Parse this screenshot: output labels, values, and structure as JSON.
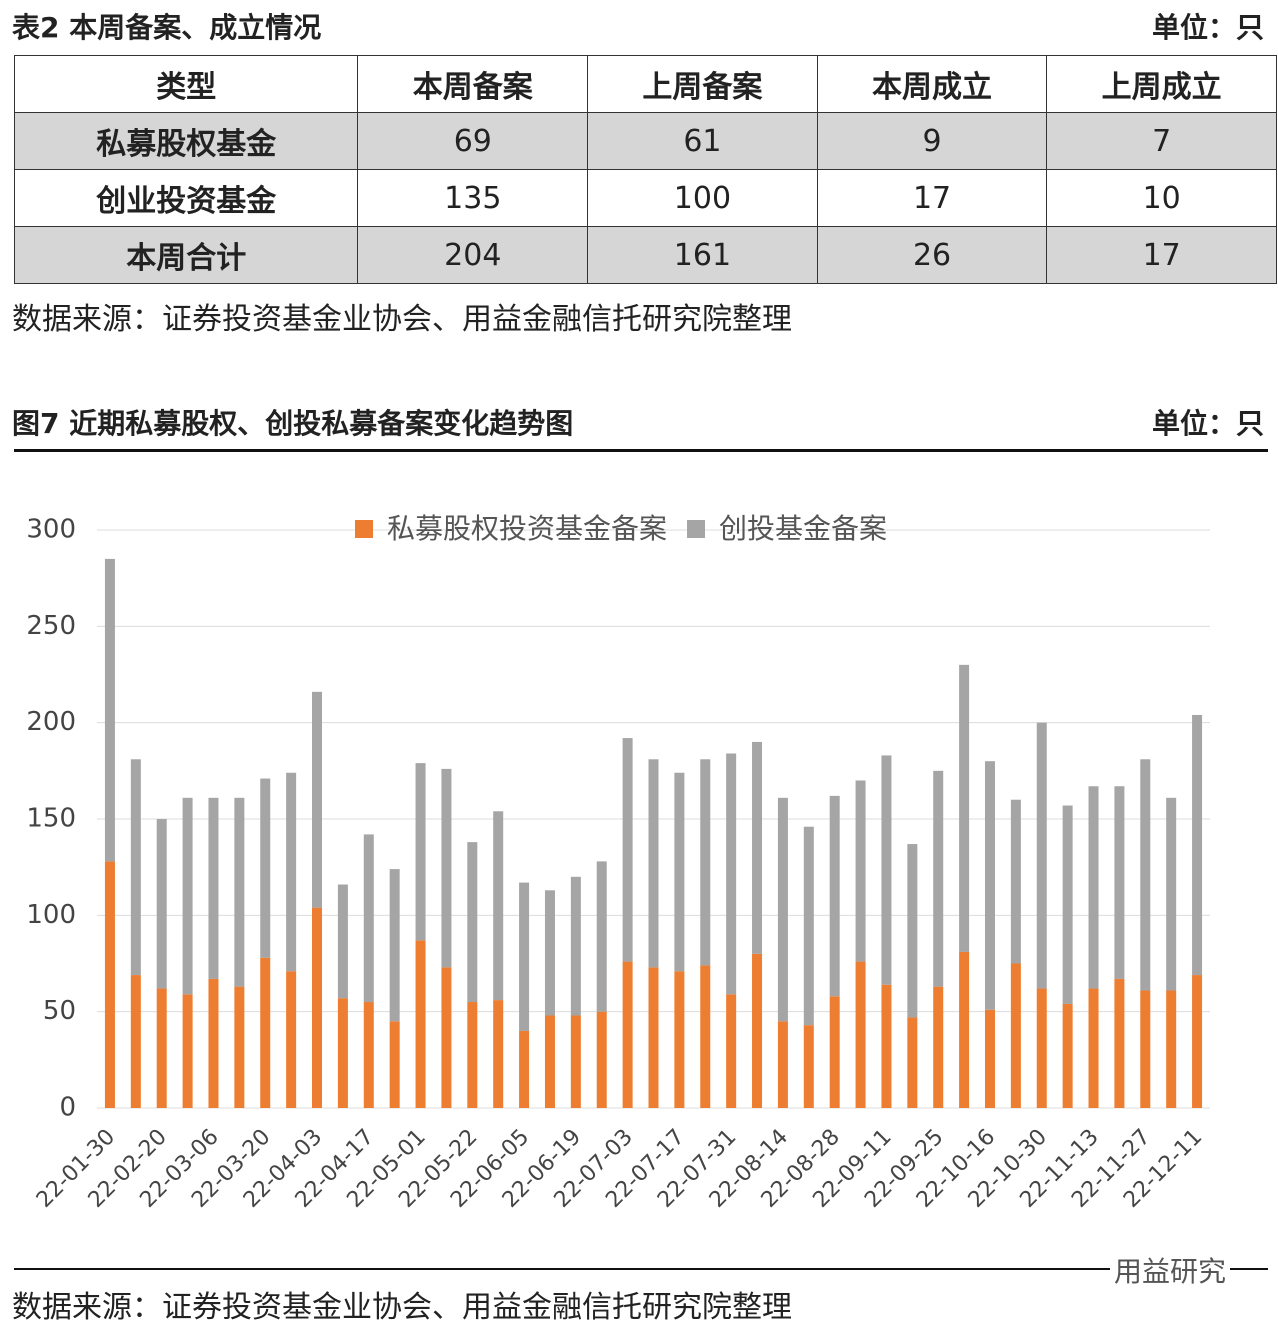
{
  "table_title": "表2  本周备案、成立情况",
  "table_unit": "单位：只",
  "table": {
    "header": [
      "类型",
      "本周备案",
      "上周备案",
      "本周成立",
      "上周成立"
    ],
    "rows": [
      [
        "私募股权基金",
        "69",
        "61",
        "9",
        "7"
      ],
      [
        "创业投资基金",
        "135",
        "100",
        "17",
        "10"
      ],
      [
        "本周合计",
        "204",
        "161",
        "26",
        "17"
      ]
    ]
  },
  "table_source": "数据来源：证券投资基金业协会、用益金融信托研究院整理",
  "figure_title": "图7  近期私募股权、创投私募备案变化趋势图",
  "figure_unit": "单位：只",
  "chart_data": {
    "type": "stacked-bar",
    "categories": [
      "22-01-30",
      null,
      "22-02-20",
      null,
      "22-03-06",
      null,
      "22-03-20",
      null,
      "22-04-03",
      null,
      "22-04-17",
      null,
      "22-05-01",
      null,
      "22-05-22",
      null,
      "22-06-05",
      null,
      "22-06-19",
      null,
      "22-07-03",
      null,
      "22-07-17",
      null,
      "22-07-31",
      null,
      "22-08-14",
      null,
      "22-08-28",
      null,
      "22-09-11",
      null,
      "22-09-25",
      null,
      "22-10-16",
      null,
      "22-10-30",
      null,
      "22-11-13",
      null,
      "22-11-27",
      null,
      "22-12-11"
    ],
    "series": [
      {
        "name": "私募股权投资基金备案",
        "color": "#ed7d31",
        "values": [
          128,
          69,
          62,
          59,
          67,
          63,
          78,
          71,
          104,
          57,
          55,
          45,
          87,
          73,
          55,
          56,
          40,
          48,
          48,
          50,
          76,
          73,
          71,
          74,
          59,
          80,
          45,
          43,
          58,
          76,
          64,
          47,
          63,
          81,
          51,
          75,
          62,
          54,
          62,
          67,
          61,
          61,
          69
        ]
      },
      {
        "name": "创投基金备案",
        "color": "#a5a5a5",
        "values": [
          157,
          112,
          88,
          102,
          94,
          98,
          93,
          103,
          112,
          59,
          87,
          79,
          92,
          103,
          83,
          98,
          77,
          65,
          72,
          78,
          116,
          108,
          103,
          107,
          125,
          110,
          116,
          103,
          104,
          94,
          119,
          90,
          112,
          149,
          129,
          85,
          138,
          103,
          105,
          100,
          120,
          100,
          135
        ]
      }
    ],
    "ylim": [
      0,
      300
    ],
    "yticks": [
      0,
      50,
      100,
      150,
      200,
      250,
      300
    ],
    "grid": true
  },
  "figure_source": "数据来源：证券投资基金业协会、用益金融信托研究院整理",
  "watermark": "用益研究"
}
